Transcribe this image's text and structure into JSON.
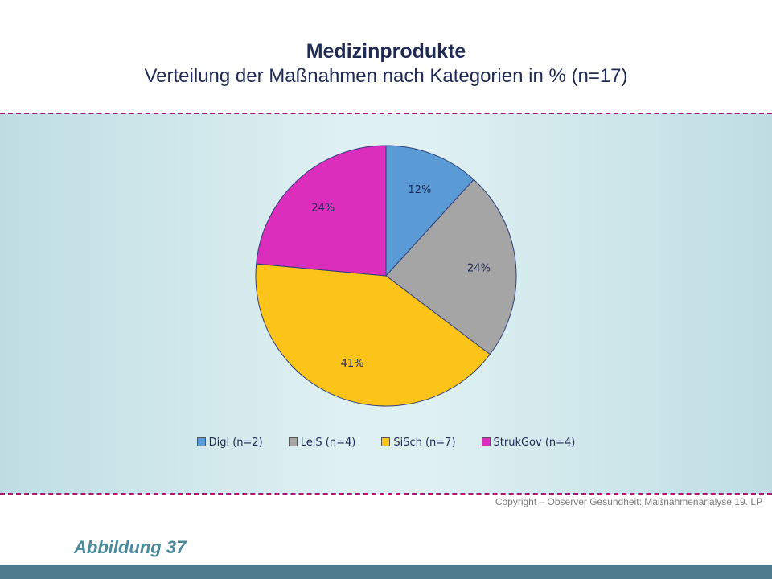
{
  "header": {
    "title": "Medizinprodukte",
    "subtitle": "Verteilung der Maßnahmen nach Kategorien in % (n=17)"
  },
  "chart_data": {
    "type": "pie",
    "title": "Medizinprodukte",
    "subtitle": "Verteilung der Maßnahmen nach Kategorien in % (n=17)",
    "legend_position": "bottom",
    "slices": [
      {
        "label": "Digi (n=2)",
        "value": 2,
        "percent_label": "12%",
        "color": "#5b9bd5"
      },
      {
        "label": "LeiS (n=4)",
        "value": 4,
        "percent_label": "24%",
        "color": "#a5a5a5"
      },
      {
        "label": "SiSch (n=7)",
        "value": 7,
        "percent_label": "41%",
        "color": "#fcc419"
      },
      {
        "label": "StrukGov (n=4)",
        "value": 4,
        "percent_label": "24%",
        "color": "#db2ebc"
      }
    ]
  },
  "footer": {
    "copyright": "Copyright – Observer Gesundheit: Maßnahmenanalyse 19. LP",
    "caption": "Abbildung 37"
  }
}
